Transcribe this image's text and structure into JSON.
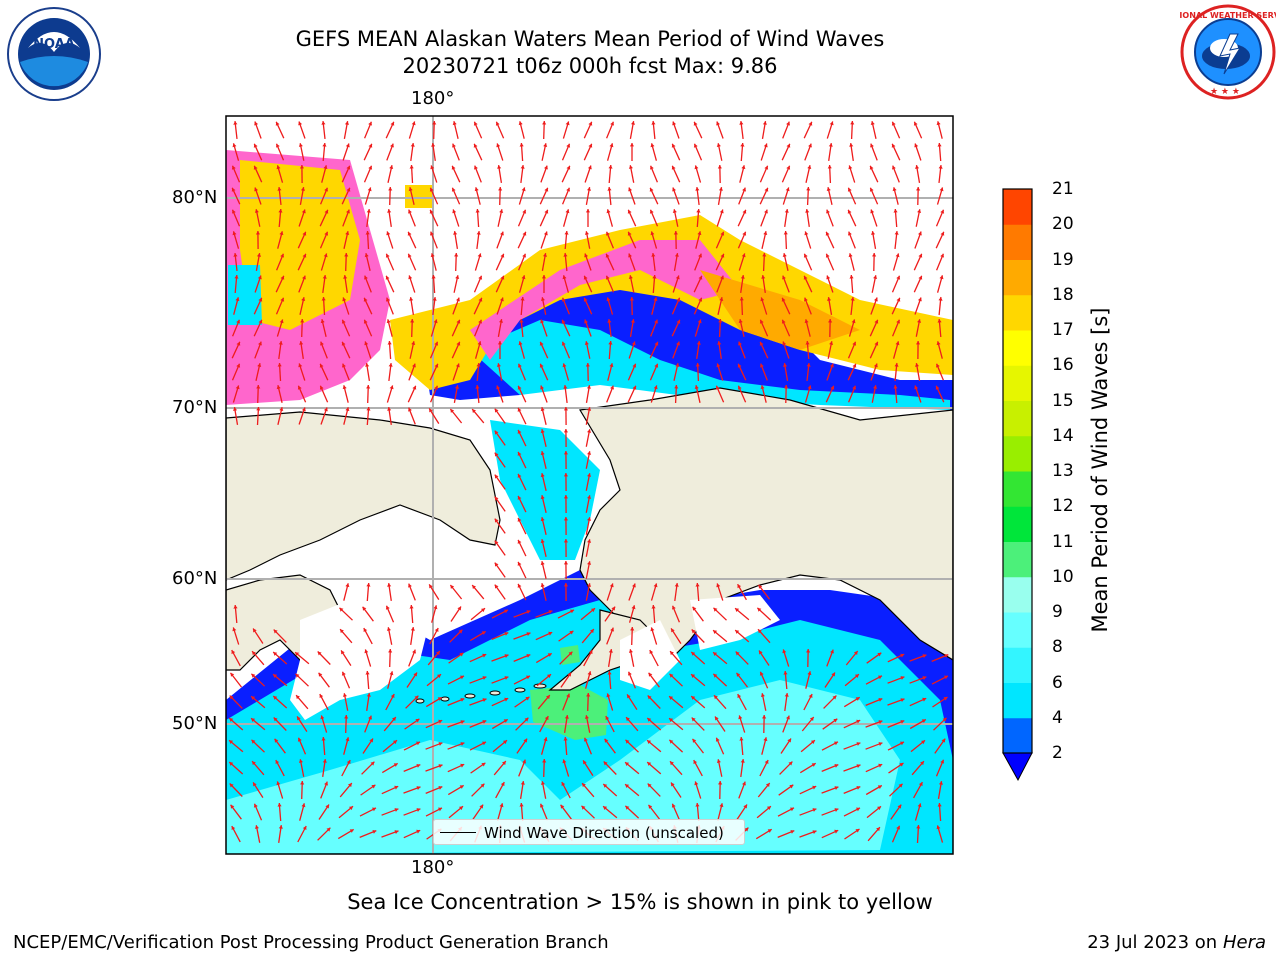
{
  "header": {
    "title_line1": "GEFS MEAN Alaskan Waters Mean Period of Wind Waves",
    "title_line2": "20230721 t06z 000h fcst   Max: 9.86"
  },
  "logos": {
    "left": {
      "name": "noaa-logo",
      "text": "NOAA"
    },
    "right": {
      "name": "national-weather-service-logo",
      "text": "NATIONAL WEATHER SERVICE"
    }
  },
  "map": {
    "lon_label_top": "180°",
    "lon_label_bottom": "180°",
    "lat_labels": [
      "80°N",
      "70°N",
      "60°N",
      "50°N"
    ],
    "legend_label": "Wind Wave Direction (unscaled)",
    "caption": "Sea Ice Concentration > 15% is shown in pink to yellow"
  },
  "colorbar": {
    "label": "Mean Period of Wind Waves [s]",
    "ticks": [
      "2",
      "4",
      "6",
      "8",
      "9",
      "10",
      "11",
      "12",
      "13",
      "14",
      "15",
      "16",
      "17",
      "18",
      "19",
      "20",
      "21"
    ],
    "colors": [
      "#0066ff",
      "#00e6ff",
      "#33f5ff",
      "#66ffff",
      "#99ffee",
      "#4cf07a",
      "#00e63a",
      "#33e633",
      "#99ee00",
      "#c8f000",
      "#e6f600",
      "#ffff00",
      "#ffd700",
      "#ffaa00",
      "#ff7a00",
      "#ff4500",
      "#ff0000"
    ],
    "underflow_color": "#0000ff"
  },
  "footer": {
    "left": "NCEP/EMC/Verification Post Processing Product Generation Branch",
    "date": "23 Jul 2023 on ",
    "machine": "Hera"
  }
}
